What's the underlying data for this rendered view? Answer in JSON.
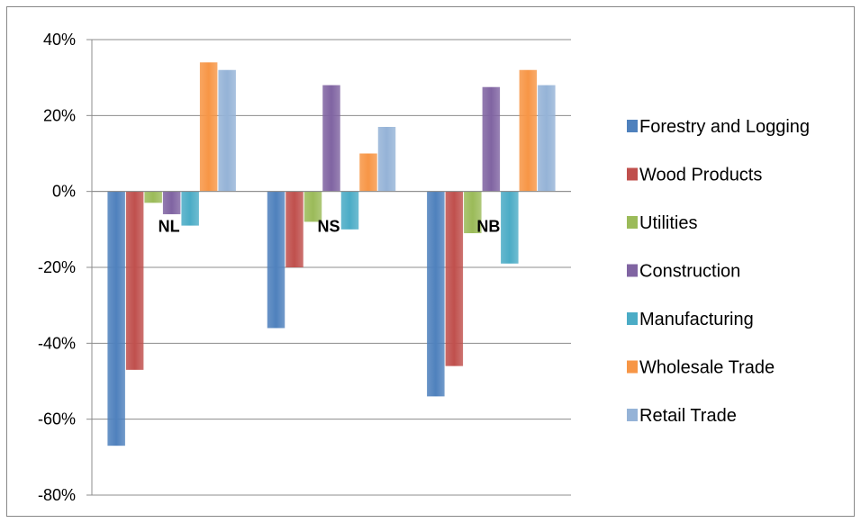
{
  "chart_data": {
    "type": "bar",
    "categories": [
      "NL",
      "NS",
      "NB"
    ],
    "series": [
      {
        "name": "Forestry and Logging",
        "color": "#4f81bd",
        "values": [
          -67,
          -36,
          -54
        ]
      },
      {
        "name": "Wood Products",
        "color": "#c0504d",
        "values": [
          -47,
          -20,
          -46
        ]
      },
      {
        "name": "Utilities",
        "color": "#9bbb59",
        "values": [
          -3,
          -8,
          -11
        ]
      },
      {
        "name": "Construction",
        "color": "#8064a2",
        "values": [
          -6,
          28,
          27.5
        ]
      },
      {
        "name": "Manufacturing",
        "color": "#4bacc6",
        "values": [
          -9,
          -10,
          -19
        ]
      },
      {
        "name": "Wholesale Trade",
        "color": "#f79646",
        "values": [
          34,
          10,
          32
        ]
      },
      {
        "name": "Retail Trade",
        "color": "#95b3d7",
        "values": [
          32,
          17,
          28
        ]
      }
    ],
    "yticks": [
      "40%",
      "20%",
      "0%",
      "-20%",
      "-40%",
      "-60%",
      "-80%"
    ],
    "ylim": [
      -80,
      40
    ],
    "grid": true,
    "legend_position": "right",
    "title": "",
    "xlabel": "",
    "ylabel": ""
  }
}
